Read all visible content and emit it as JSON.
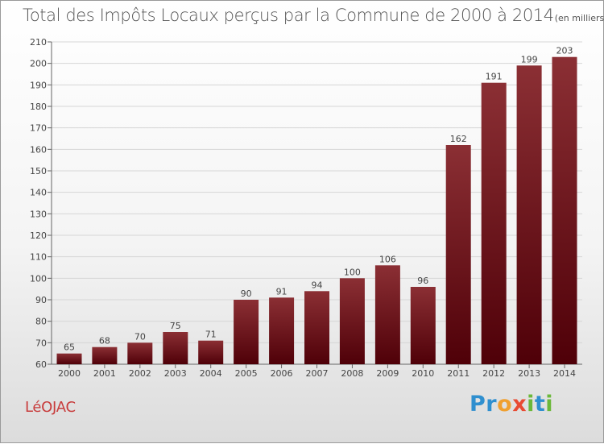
{
  "title": "Total des Impôts Locaux perçus par la Commune de 2000 à 2014",
  "subtitle": "(en milliers d'€)",
  "commune": "LéOJAC",
  "logo": {
    "letters": [
      "P",
      "r",
      "o",
      "x",
      "i",
      "t",
      "i"
    ],
    "colors": [
      "#2f8fcf",
      "#2f8fcf",
      "#f0a030",
      "#e84a32",
      "#6bb83a",
      "#2f8fcf",
      "#6bb83a"
    ]
  },
  "colors": {
    "bar_top": "#8b2f34",
    "bar_bottom": "#4f0008",
    "axis": "#666666",
    "grid": "#d6d6d6",
    "text": "#444444"
  },
  "chart_data": {
    "type": "bar",
    "categories": [
      "2000",
      "2001",
      "2002",
      "2003",
      "2004",
      "2005",
      "2006",
      "2007",
      "2008",
      "2009",
      "2010",
      "2011",
      "2012",
      "2013",
      "2014"
    ],
    "values": [
      65,
      68,
      70,
      75,
      71,
      90,
      91,
      94,
      100,
      106,
      96,
      162,
      191,
      199,
      203
    ],
    "yticks": [
      60,
      70,
      80,
      90,
      100,
      110,
      120,
      130,
      140,
      150,
      160,
      170,
      180,
      190,
      200,
      210
    ],
    "ylim": [
      60,
      210
    ],
    "xlabel": "",
    "ylabel": "",
    "grid": true,
    "legend": "none"
  }
}
